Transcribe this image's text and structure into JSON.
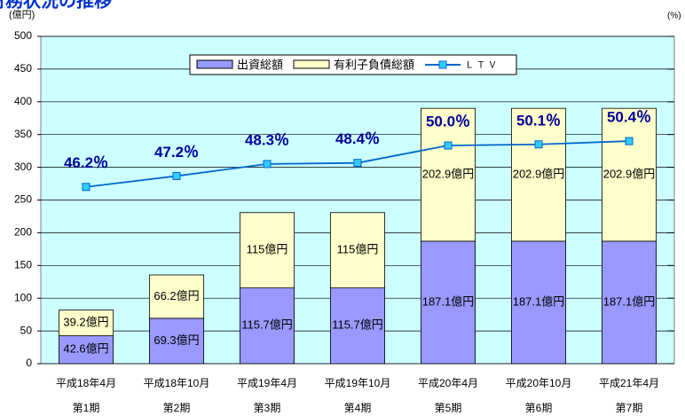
{
  "chart_data": {
    "type": "bar",
    "title": "財務状況の推移",
    "y_label": "(億円)",
    "y2_label": "(%)",
    "categories": [
      "平成18年4月",
      "平成18年10月",
      "平成19年4月",
      "平成19年10月",
      "平成20年4月",
      "平成20年10月",
      "平成21年4月"
    ],
    "period_labels": [
      "第1期",
      "第2期",
      "第3期",
      "第4期",
      "第5期",
      "第6期",
      "第7期"
    ],
    "stacked": true,
    "series": [
      {
        "name": "出資総額",
        "color": "#9999ff",
        "values": [
          42.6,
          69.3,
          115.7,
          115.7,
          187.1,
          187.1,
          187.1
        ],
        "value_labels": [
          "42.6億円",
          "69.3億円",
          "115.7億円",
          "115.7億円",
          "187.1億円",
          "187.1億円",
          "187.1億円"
        ]
      },
      {
        "name": "有利子負債総額",
        "color": "#ffffcc",
        "values": [
          39.2,
          66.2,
          115,
          115,
          202.9,
          202.9,
          202.9
        ],
        "value_labels": [
          "39.2億円",
          "66.2億円",
          "115億円",
          "115億円",
          "202.9億円",
          "202.9億円",
          "202.9億円"
        ]
      },
      {
        "name": "ＬＴＶ",
        "type": "line",
        "axis": "y2",
        "color": "#0066cc",
        "marker_color": "#33ccff",
        "values": [
          46.2,
          47.2,
          48.3,
          48.4,
          50.0,
          50.1,
          50.4
        ],
        "value_labels": [
          "46.2％",
          "47.2％",
          "48.3％",
          "48.4％",
          "50.0％",
          "50.1％",
          "50.4％"
        ]
      }
    ],
    "ylim": [
      0,
      500
    ],
    "yticks": [
      0,
      50,
      100,
      150,
      200,
      250,
      300,
      350,
      400,
      450,
      500
    ],
    "y2lim": [
      30,
      60
    ],
    "grid": true,
    "plot_background": "#ccffff",
    "legend": "top"
  }
}
